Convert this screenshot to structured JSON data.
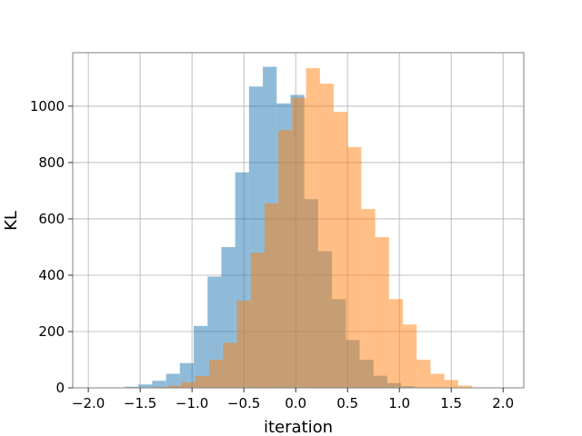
{
  "chart_data": {
    "type": "bar",
    "title": "",
    "xlabel": "iteration",
    "ylabel": "KL",
    "xlim": [
      -2.15,
      2.2
    ],
    "ylim": [
      0,
      1190
    ],
    "grid": true,
    "x_ticks": [
      -2.0,
      -1.5,
      -1.0,
      -0.5,
      0.0,
      0.5,
      1.0,
      1.5,
      2.0
    ],
    "x_tick_labels": [
      "−2.0",
      "−1.5",
      "−1.0",
      "−0.5",
      "0.0",
      "0.5",
      "1.0",
      "1.5",
      "2.0"
    ],
    "y_ticks": [
      0,
      200,
      400,
      600,
      800,
      1000
    ],
    "y_tick_labels": [
      "0",
      "200",
      "400",
      "600",
      "800",
      "1000"
    ],
    "series": [
      {
        "color": "#1f77b4",
        "opacity": 0.5,
        "bin_edges": [
          -2.05,
          -1.9167,
          -1.7833,
          -1.65,
          -1.5167,
          -1.3833,
          -1.25,
          -1.1167,
          -0.9833,
          -0.85,
          -0.7167,
          -0.5833,
          -0.45,
          -0.3167,
          -0.1833,
          -0.05,
          0.0833,
          0.2167,
          0.35,
          0.4833,
          0.6167,
          0.75,
          0.8833,
          1.0167,
          1.15,
          1.2833,
          1.4167,
          1.55,
          1.6833,
          1.8167,
          1.95
        ],
        "counts": [
          1,
          0,
          1,
          4,
          12,
          25,
          50,
          88,
          220,
          395,
          500,
          765,
          1070,
          1140,
          1010,
          1040,
          670,
          485,
          315,
          170,
          100,
          43,
          17,
          6,
          2,
          1,
          0,
          0,
          0,
          0
        ]
      },
      {
        "color": "#ff7f0e",
        "opacity": 0.5,
        "bin_edges": [
          -1.9,
          -1.7667,
          -1.6333,
          -1.5,
          -1.3667,
          -1.2333,
          -1.1,
          -0.9667,
          -0.8333,
          -0.7,
          -0.5667,
          -0.4333,
          -0.3,
          -0.1667,
          -0.0333,
          0.1,
          0.2333,
          0.3667,
          0.5,
          0.6333,
          0.7667,
          0.9,
          1.0333,
          1.1667,
          1.3,
          1.4333,
          1.5667,
          1.7,
          1.8333,
          1.9667,
          2.1
        ],
        "counts": [
          0,
          0,
          0,
          1,
          3,
          8,
          20,
          42,
          100,
          160,
          310,
          480,
          655,
          915,
          1030,
          1135,
          1080,
          980,
          855,
          635,
          535,
          315,
          225,
          100,
          50,
          28,
          8,
          2,
          1,
          0
        ]
      }
    ]
  }
}
